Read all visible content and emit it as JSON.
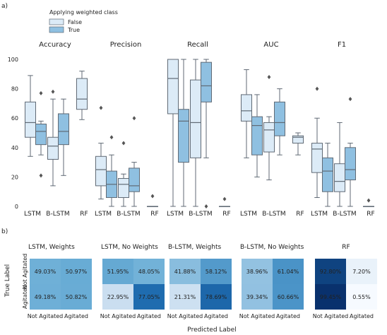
{
  "panel_labels": {
    "a": "a)",
    "b": "b)"
  },
  "legend": {
    "title": "Applying weighted class",
    "items": [
      {
        "label": "False",
        "color": "#dcebf7"
      },
      {
        "label": "True",
        "color": "#8fc0e1"
      }
    ]
  },
  "colors": {
    "box_edge": "#606a75",
    "heat_low": "#f7fbff",
    "heat_high": "#08306b"
  },
  "chart_data": [
    {
      "type": "box",
      "ylim": [
        0,
        100
      ],
      "yticks": [
        0,
        20,
        40,
        60,
        80,
        100
      ],
      "x_tick_labels": [
        "LSTM",
        "B-LSTM",
        "RF"
      ],
      "panels": [
        {
          "title": "Accuracy",
          "groups": [
            {
              "model": "LSTM",
              "series": "False",
              "q1": 47,
              "median": 57,
              "q3": 71,
              "whisker_low": 34,
              "whisker_high": 89,
              "outliers": []
            },
            {
              "model": "LSTM",
              "series": "True",
              "q1": 42,
              "median": 51,
              "q3": 56,
              "whisker_low": 35,
              "whisker_high": 58,
              "outliers": [
                21,
                77
              ]
            },
            {
              "model": "B-LSTM",
              "series": "False",
              "q1": 32,
              "median": 41,
              "q3": 47,
              "whisker_low": 14,
              "whisker_high": 73,
              "outliers": [
                78
              ]
            },
            {
              "model": "B-LSTM",
              "series": "True",
              "q1": 42,
              "median": 51,
              "q3": 63,
              "whisker_low": 21,
              "whisker_high": 73,
              "outliers": []
            },
            {
              "model": "RF",
              "series": "False",
              "q1": 66,
              "median": 73,
              "q3": 87,
              "whisker_low": 59,
              "whisker_high": 92,
              "outliers": []
            }
          ]
        },
        {
          "title": "Precision",
          "groups": [
            {
              "model": "LSTM",
              "series": "False",
              "q1": 14,
              "median": 25,
              "q3": 34,
              "whisker_low": 5,
              "whisker_high": 43,
              "outliers": [
                67
              ]
            },
            {
              "model": "LSTM",
              "series": "True",
              "q1": 6,
              "median": 15,
              "q3": 24,
              "whisker_low": 0,
              "whisker_high": 35,
              "outliers": [
                47
              ]
            },
            {
              "model": "B-LSTM",
              "series": "False",
              "q1": 6,
              "median": 15,
              "q3": 19,
              "whisker_low": 0,
              "whisker_high": 22,
              "outliers": [
                43
              ]
            },
            {
              "model": "B-LSTM",
              "series": "True",
              "q1": 10,
              "median": 14,
              "q3": 26,
              "whisker_low": 0,
              "whisker_high": 30,
              "outliers": [
                60
              ]
            },
            {
              "model": "RF",
              "series": "False",
              "q1": 0,
              "median": 0,
              "q3": 0,
              "whisker_low": 0,
              "whisker_high": 0,
              "outliers": [
                7
              ]
            }
          ]
        },
        {
          "title": "Recall",
          "groups": [
            {
              "model": "LSTM",
              "series": "False",
              "q1": 63,
              "median": 87,
              "q3": 100,
              "whisker_low": 0,
              "whisker_high": 100,
              "outliers": []
            },
            {
              "model": "LSTM",
              "series": "True",
              "q1": 30,
              "median": 58,
              "q3": 66,
              "whisker_low": 0,
              "whisker_high": 100,
              "outliers": []
            },
            {
              "model": "B-LSTM",
              "series": "False",
              "q1": 33,
              "median": 57,
              "q3": 86,
              "whisker_low": 0,
              "whisker_high": 100,
              "outliers": []
            },
            {
              "model": "B-LSTM",
              "series": "True",
              "q1": 71,
              "median": 82,
              "q3": 98,
              "whisker_low": 33,
              "whisker_high": 100,
              "outliers": [
                0
              ]
            },
            {
              "model": "RF",
              "series": "False",
              "q1": 0,
              "median": 0,
              "q3": 0,
              "whisker_low": 0,
              "whisker_high": 0,
              "outliers": [
                5
              ]
            }
          ]
        },
        {
          "title": "AUC",
          "groups": [
            {
              "model": "LSTM",
              "series": "False",
              "q1": 58,
              "median": 65,
              "q3": 76,
              "whisker_low": 33,
              "whisker_high": 93,
              "outliers": []
            },
            {
              "model": "LSTM",
              "series": "True",
              "q1": 35,
              "median": 55,
              "q3": 61,
              "whisker_low": 20,
              "whisker_high": 76,
              "outliers": []
            },
            {
              "model": "B-LSTM",
              "series": "False",
              "q1": 37,
              "median": 52,
              "q3": 57,
              "whisker_low": 18,
              "whisker_high": 61,
              "outliers": [
                88
              ]
            },
            {
              "model": "B-LSTM",
              "series": "True",
              "q1": 48,
              "median": 57,
              "q3": 71,
              "whisker_low": 35,
              "whisker_high": 80,
              "outliers": []
            },
            {
              "model": "RF",
              "series": "False",
              "q1": 43,
              "median": 47,
              "q3": 48,
              "whisker_low": 35,
              "whisker_high": 50,
              "outliers": []
            }
          ]
        },
        {
          "title": "F1",
          "groups": [
            {
              "model": "LSTM",
              "series": "False",
              "q1": 23,
              "median": 39,
              "q3": 43,
              "whisker_low": 6,
              "whisker_high": 60,
              "outliers": [
                80
              ]
            },
            {
              "model": "LSTM",
              "series": "True",
              "q1": 10,
              "median": 24,
              "q3": 33,
              "whisker_low": 0,
              "whisker_high": 43,
              "outliers": []
            },
            {
              "model": "B-LSTM",
              "series": "False",
              "q1": 10,
              "median": 17,
              "q3": 29,
              "whisker_low": 0,
              "whisker_high": 57,
              "outliers": []
            },
            {
              "model": "B-LSTM",
              "series": "True",
              "q1": 18,
              "median": 25,
              "q3": 40,
              "whisker_low": 0,
              "whisker_high": 43,
              "outliers": [
                73
              ]
            },
            {
              "model": "RF",
              "series": "False",
              "q1": 0,
              "median": 0,
              "q3": 0,
              "whisker_low": 0,
              "whisker_high": 0,
              "outliers": [
                4
              ]
            }
          ]
        }
      ]
    },
    {
      "type": "heatmap",
      "ylabel": "True Label",
      "xlabel": "Predicted Label",
      "row_labels": [
        "Not Agitated",
        "Agitated"
      ],
      "col_labels": [
        "Not Agitated",
        "Agitated"
      ],
      "matrices": [
        {
          "title": "LSTM, Weights",
          "cells": [
            [
              "49.03%",
              "50.97%"
            ],
            [
              "49.18%",
              "50.82%"
            ]
          ],
          "values": [
            [
              49.03,
              50.97
            ],
            [
              49.18,
              50.82
            ]
          ]
        },
        {
          "title": "LSTM, No Weights",
          "cells": [
            [
              "51.95%",
              "48.05%"
            ],
            [
              "22.95%",
              "77.05%"
            ]
          ],
          "values": [
            [
              51.95,
              48.05
            ],
            [
              22.95,
              77.05
            ]
          ]
        },
        {
          "title": "B-LSTM, Weights",
          "cells": [
            [
              "41.88%",
              "58.12%"
            ],
            [
              "21.31%",
              "78.69%"
            ]
          ],
          "values": [
            [
              41.88,
              58.12
            ],
            [
              21.31,
              78.69
            ]
          ]
        },
        {
          "title": "B-LSTM, No Weights",
          "cells": [
            [
              "38.96%",
              "61.04%"
            ],
            [
              "39.34%",
              "60.66%"
            ]
          ],
          "values": [
            [
              38.96,
              61.04
            ],
            [
              39.34,
              60.66
            ]
          ]
        },
        {
          "title": "RF",
          "cells": [
            [
              "92.80%",
              "7.20%"
            ],
            [
              "99.45%",
              "0.55%"
            ]
          ],
          "values": [
            [
              92.8,
              7.2
            ],
            [
              99.45,
              0.55
            ]
          ]
        }
      ]
    }
  ]
}
